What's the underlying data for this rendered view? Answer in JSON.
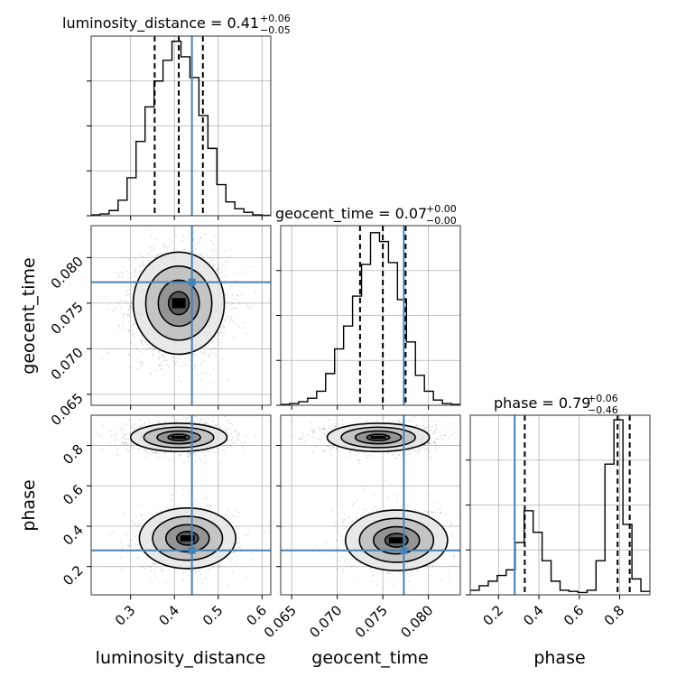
{
  "colors": {
    "truth": "#4682b4",
    "hist": "#000000",
    "grid": "#b0b0b0",
    "scatter": "#000000"
  },
  "titles": {
    "luminosity_distance": {
      "prefix": "luminosity_distance = 0.41",
      "sup": "+0.06",
      "sub": "−0.05"
    },
    "geocent_time": {
      "prefix": "geocent_time = 0.07",
      "sup": "+0.00",
      "sub": "−0.00"
    },
    "phase": {
      "prefix": "phase = 0.79",
      "sup": "+0.06",
      "sub": "−0.46"
    }
  },
  "chart_data": {
    "type": "corner",
    "parameters": [
      "luminosity_distance",
      "geocent_time",
      "phase"
    ],
    "axis_labels": {
      "luminosity_distance": "luminosity_distance",
      "geocent_time": "geocent_time",
      "phase": "phase"
    },
    "ranges": {
      "luminosity_distance": [
        0.21,
        0.62
      ],
      "geocent_time": [
        0.0638,
        0.0835
      ],
      "phase": [
        0.06,
        0.95
      ]
    },
    "ticks": {
      "luminosity_distance": {
        "values": [
          0.3,
          0.4,
          0.5,
          0.6
        ],
        "labels": [
          "0.3",
          "0.4",
          "0.5",
          "0.6"
        ]
      },
      "geocent_time": {
        "values": [
          0.065,
          0.07,
          0.075,
          0.08
        ],
        "labels": [
          "0.065",
          "0.070",
          "0.075",
          "0.080"
        ]
      },
      "phase": {
        "values": [
          0.2,
          0.4,
          0.6,
          0.8
        ],
        "labels": [
          "0.2",
          "0.4",
          "0.6",
          "0.8"
        ]
      }
    },
    "truth": {
      "luminosity_distance": 0.44,
      "geocent_time": 0.0773,
      "phase": 0.28
    },
    "quantiles": {
      "luminosity_distance": [
        0.355,
        0.41,
        0.465
      ],
      "geocent_time": [
        0.0725,
        0.075,
        0.0775
      ],
      "phase": [
        0.33,
        0.79,
        0.85
      ]
    },
    "histograms": {
      "luminosity_distance": {
        "edges": [
          0.21,
          0.2305,
          0.251,
          0.2715,
          0.292,
          0.3125,
          0.333,
          0.3535,
          0.374,
          0.3945,
          0.415,
          0.4355,
          0.456,
          0.4765,
          0.497,
          0.5175,
          0.538,
          0.5585,
          0.579,
          0.5995,
          0.62
        ],
        "counts": [
          0.5,
          1,
          3,
          9,
          22,
          43,
          63,
          78,
          90,
          101,
          92,
          80,
          58,
          39,
          18,
          8,
          4,
          2,
          0.5,
          0.2
        ],
        "ymax": 104
      },
      "geocent_time": {
        "edges": [
          0.0638,
          0.064785,
          0.06577,
          0.066755,
          0.06774,
          0.068725,
          0.06971,
          0.070695,
          0.07168,
          0.072665,
          0.07365,
          0.074635,
          0.07562,
          0.076605,
          0.07759,
          0.078575,
          0.07956,
          0.080545,
          0.08153,
          0.082515,
          0.0835
        ],
        "counts": [
          0.5,
          1,
          2,
          4,
          8,
          18,
          32,
          45,
          62,
          80,
          98,
          93,
          81,
          60,
          36,
          17,
          8,
          3,
          1,
          0.5
        ],
        "ymax": 102
      },
      "phase": {
        "edges": [
          0.06,
          0.1045,
          0.149,
          0.1935,
          0.238,
          0.2825,
          0.327,
          0.3715,
          0.416,
          0.4605,
          0.505,
          0.5495,
          0.594,
          0.6385,
          0.683,
          0.7275,
          0.772,
          0.8165,
          0.861,
          0.9055,
          0.95
        ],
        "counts": [
          4,
          8,
          12,
          17,
          22,
          46,
          74,
          55,
          30,
          12,
          4,
          3,
          2,
          4,
          30,
          115,
          154,
          62,
          14,
          3
        ],
        "ymax": 158
      }
    },
    "pairs": [
      {
        "x": "luminosity_distance",
        "y": "geocent_time",
        "modes": [
          {
            "cx": 0.41,
            "cy": 0.075,
            "sx": 0.052,
            "sy": 0.0028,
            "w": 1
          }
        ]
      },
      {
        "x": "luminosity_distance",
        "y": "phase",
        "modes": [
          {
            "cx": 0.41,
            "cy": 0.84,
            "sx": 0.055,
            "sy": 0.035,
            "w": 0.62
          },
          {
            "cx": 0.43,
            "cy": 0.34,
            "sx": 0.055,
            "sy": 0.075,
            "w": 0.38
          }
        ]
      },
      {
        "x": "geocent_time",
        "y": "phase",
        "modes": [
          {
            "cx": 0.0745,
            "cy": 0.84,
            "sx": 0.0028,
            "sy": 0.035,
            "w": 0.62
          },
          {
            "cx": 0.0765,
            "cy": 0.33,
            "sx": 0.0028,
            "sy": 0.075,
            "w": 0.38
          }
        ]
      }
    ]
  }
}
